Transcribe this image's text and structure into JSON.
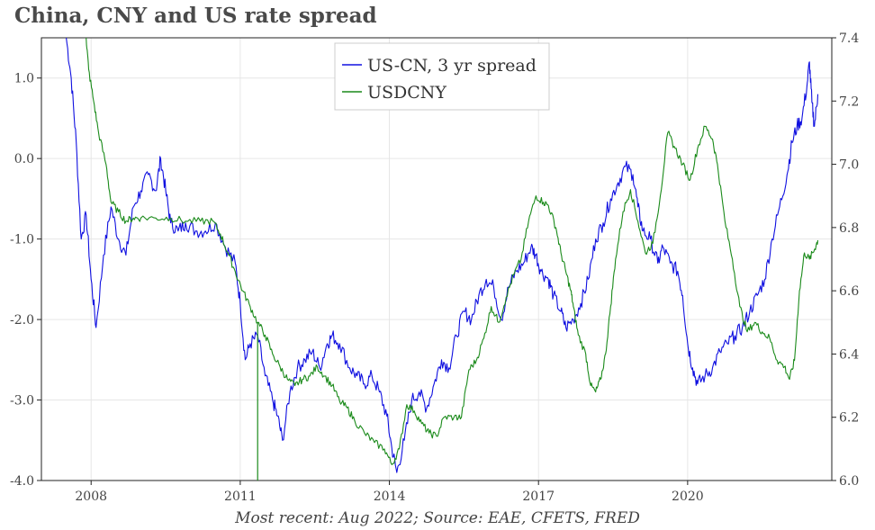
{
  "chart_data": {
    "type": "line",
    "title": "China, CNY and US rate spread",
    "source_note": "Most recent: Aug 2022; Source: EAE, CFETS, FRED",
    "x_ticks": [
      "2008",
      "2011",
      "2014",
      "2017",
      "2020"
    ],
    "y_left": {
      "ticks": [
        "1.0",
        "0.0",
        "-1.0",
        "-2.0",
        "-3.0",
        "-4.0"
      ],
      "range": [
        -4.0,
        1.5
      ]
    },
    "y_right": {
      "ticks": [
        "7.4",
        "7.2",
        "7.0",
        "6.8",
        "6.6",
        "6.4",
        "6.2",
        "6.0"
      ],
      "range": [
        6.0,
        7.4
      ]
    },
    "x_range": [
      2007.0,
      2022.9
    ],
    "grid": true,
    "legend_position": "top-center",
    "series": [
      {
        "name": "US-CN, 3 yr spread",
        "axis": "left",
        "color": "#1010e0",
        "points": [
          [
            2007.5,
            1.5
          ],
          [
            2007.6,
            1.0
          ],
          [
            2007.7,
            0.2
          ],
          [
            2007.8,
            -1.0
          ],
          [
            2007.9,
            -0.7
          ],
          [
            2008.0,
            -1.5
          ],
          [
            2008.1,
            -2.1
          ],
          [
            2008.25,
            -1.2
          ],
          [
            2008.4,
            -0.6
          ],
          [
            2008.55,
            -1.0
          ],
          [
            2008.7,
            -1.2
          ],
          [
            2008.85,
            -0.6
          ],
          [
            2009.0,
            -0.4
          ],
          [
            2009.15,
            -0.2
          ],
          [
            2009.3,
            -0.4
          ],
          [
            2009.4,
            0.0
          ],
          [
            2009.5,
            -0.4
          ],
          [
            2009.6,
            -0.8
          ],
          [
            2009.75,
            -0.9
          ],
          [
            2009.9,
            -0.8
          ],
          [
            2010.1,
            -0.9
          ],
          [
            2010.3,
            -0.9
          ],
          [
            2010.5,
            -0.8
          ],
          [
            2010.7,
            -1.1
          ],
          [
            2010.9,
            -1.3
          ],
          [
            2011.0,
            -1.8
          ],
          [
            2011.1,
            -2.5
          ],
          [
            2011.2,
            -2.3
          ],
          [
            2011.35,
            -2.2
          ],
          [
            2011.5,
            -2.7
          ],
          [
            2011.65,
            -3.0
          ],
          [
            2011.75,
            -3.2
          ],
          [
            2011.85,
            -3.5
          ],
          [
            2012.0,
            -2.9
          ],
          [
            2012.15,
            -2.6
          ],
          [
            2012.3,
            -2.5
          ],
          [
            2012.45,
            -2.4
          ],
          [
            2012.6,
            -2.6
          ],
          [
            2012.75,
            -2.3
          ],
          [
            2012.85,
            -2.2
          ],
          [
            2013.0,
            -2.3
          ],
          [
            2013.2,
            -2.6
          ],
          [
            2013.35,
            -2.7
          ],
          [
            2013.5,
            -2.8
          ],
          [
            2013.65,
            -2.7
          ],
          [
            2013.8,
            -2.9
          ],
          [
            2013.95,
            -3.2
          ],
          [
            2014.05,
            -3.6
          ],
          [
            2014.15,
            -3.9
          ],
          [
            2014.3,
            -3.5
          ],
          [
            2014.45,
            -3.0
          ],
          [
            2014.6,
            -2.9
          ],
          [
            2014.75,
            -3.1
          ],
          [
            2014.9,
            -2.8
          ],
          [
            2015.05,
            -2.5
          ],
          [
            2015.2,
            -2.6
          ],
          [
            2015.35,
            -2.2
          ],
          [
            2015.5,
            -1.9
          ],
          [
            2015.65,
            -2.0
          ],
          [
            2015.8,
            -1.7
          ],
          [
            2015.95,
            -1.5
          ],
          [
            2016.1,
            -1.6
          ],
          [
            2016.25,
            -2.0
          ],
          [
            2016.4,
            -1.6
          ],
          [
            2016.55,
            -1.4
          ],
          [
            2016.7,
            -1.3
          ],
          [
            2016.85,
            -1.1
          ],
          [
            2016.95,
            -1.2
          ],
          [
            2017.05,
            -1.4
          ],
          [
            2017.2,
            -1.5
          ],
          [
            2017.3,
            -1.7
          ],
          [
            2017.45,
            -1.9
          ],
          [
            2017.55,
            -2.1
          ],
          [
            2017.7,
            -2.0
          ],
          [
            2017.85,
            -1.8
          ],
          [
            2018.0,
            -1.5
          ],
          [
            2018.15,
            -1.0
          ],
          [
            2018.3,
            -0.8
          ],
          [
            2018.45,
            -0.5
          ],
          [
            2018.6,
            -0.3
          ],
          [
            2018.75,
            -0.1
          ],
          [
            2018.9,
            -0.2
          ],
          [
            2019.0,
            -0.6
          ],
          [
            2019.1,
            -0.9
          ],
          [
            2019.25,
            -1.0
          ],
          [
            2019.4,
            -1.3
          ],
          [
            2019.5,
            -1.1
          ],
          [
            2019.65,
            -1.3
          ],
          [
            2019.8,
            -1.4
          ],
          [
            2019.9,
            -1.7
          ],
          [
            2020.0,
            -2.3
          ],
          [
            2020.1,
            -2.6
          ],
          [
            2020.2,
            -2.8
          ],
          [
            2020.35,
            -2.7
          ],
          [
            2020.5,
            -2.6
          ],
          [
            2020.65,
            -2.4
          ],
          [
            2020.8,
            -2.3
          ],
          [
            2020.95,
            -2.2
          ],
          [
            2021.1,
            -2.1
          ],
          [
            2021.25,
            -1.9
          ],
          [
            2021.4,
            -1.7
          ],
          [
            2021.55,
            -1.5
          ],
          [
            2021.7,
            -1.0
          ],
          [
            2021.85,
            -0.6
          ],
          [
            2022.0,
            -0.2
          ],
          [
            2022.1,
            0.2
          ],
          [
            2022.2,
            0.4
          ],
          [
            2022.3,
            0.5
          ],
          [
            2022.4,
            0.9
          ],
          [
            2022.45,
            1.2
          ],
          [
            2022.5,
            0.7
          ],
          [
            2022.55,
            0.4
          ],
          [
            2022.62,
            0.8
          ]
        ]
      },
      {
        "name": "USDCNY",
        "axis": "right",
        "color": "#1a8a1a",
        "points": [
          [
            2007.9,
            7.4
          ],
          [
            2007.95,
            7.3
          ],
          [
            2008.05,
            7.2
          ],
          [
            2008.15,
            7.1
          ],
          [
            2008.3,
            7.0
          ],
          [
            2008.4,
            6.88
          ],
          [
            2008.55,
            6.85
          ],
          [
            2008.7,
            6.82
          ],
          [
            2008.85,
            6.83
          ],
          [
            2009.0,
            6.83
          ],
          [
            2009.3,
            6.83
          ],
          [
            2009.6,
            6.83
          ],
          [
            2009.9,
            6.82
          ],
          [
            2010.2,
            6.82
          ],
          [
            2010.45,
            6.82
          ],
          [
            2010.6,
            6.78
          ],
          [
            2010.75,
            6.72
          ],
          [
            2010.9,
            6.66
          ],
          [
            2011.05,
            6.6
          ],
          [
            2011.2,
            6.55
          ],
          [
            2011.35,
            6.5
          ],
          [
            2011.5,
            6.46
          ],
          [
            2011.65,
            6.4
          ],
          [
            2011.8,
            6.36
          ],
          [
            2011.95,
            6.32
          ],
          [
            2012.1,
            6.3
          ],
          [
            2012.25,
            6.32
          ],
          [
            2012.4,
            6.33
          ],
          [
            2012.55,
            6.36
          ],
          [
            2012.7,
            6.33
          ],
          [
            2012.85,
            6.3
          ],
          [
            2013.0,
            6.25
          ],
          [
            2013.15,
            6.23
          ],
          [
            2013.3,
            6.19
          ],
          [
            2013.5,
            6.15
          ],
          [
            2013.7,
            6.12
          ],
          [
            2013.9,
            6.1
          ],
          [
            2014.05,
            6.05
          ],
          [
            2014.2,
            6.1
          ],
          [
            2014.35,
            6.24
          ],
          [
            2014.5,
            6.22
          ],
          [
            2014.65,
            6.18
          ],
          [
            2014.8,
            6.15
          ],
          [
            2014.95,
            6.14
          ],
          [
            2015.1,
            6.2
          ],
          [
            2015.3,
            6.2
          ],
          [
            2015.45,
            6.2
          ],
          [
            2015.6,
            6.35
          ],
          [
            2015.75,
            6.38
          ],
          [
            2015.9,
            6.45
          ],
          [
            2016.05,
            6.55
          ],
          [
            2016.2,
            6.5
          ],
          [
            2016.35,
            6.58
          ],
          [
            2016.5,
            6.65
          ],
          [
            2016.65,
            6.7
          ],
          [
            2016.8,
            6.82
          ],
          [
            2016.95,
            6.9
          ],
          [
            2017.1,
            6.88
          ],
          [
            2017.2,
            6.87
          ],
          [
            2017.35,
            6.8
          ],
          [
            2017.45,
            6.72
          ],
          [
            2017.55,
            6.66
          ],
          [
            2017.65,
            6.6
          ],
          [
            2017.7,
            6.55
          ],
          [
            2017.8,
            6.46
          ],
          [
            2017.95,
            6.4
          ],
          [
            2018.05,
            6.3
          ],
          [
            2018.15,
            6.28
          ],
          [
            2018.25,
            6.32
          ],
          [
            2018.35,
            6.4
          ],
          [
            2018.45,
            6.55
          ],
          [
            2018.55,
            6.7
          ],
          [
            2018.7,
            6.85
          ],
          [
            2018.85,
            6.92
          ],
          [
            2019.0,
            6.82
          ],
          [
            2019.15,
            6.72
          ],
          [
            2019.3,
            6.75
          ],
          [
            2019.45,
            6.9
          ],
          [
            2019.6,
            7.1
          ],
          [
            2019.75,
            7.05
          ],
          [
            2019.9,
            7.0
          ],
          [
            2020.05,
            6.95
          ],
          [
            2020.2,
            7.05
          ],
          [
            2020.35,
            7.12
          ],
          [
            2020.5,
            7.08
          ],
          [
            2020.6,
            7.0
          ],
          [
            2020.75,
            6.82
          ],
          [
            2020.9,
            6.7
          ],
          [
            2021.05,
            6.55
          ],
          [
            2021.2,
            6.47
          ],
          [
            2021.35,
            6.5
          ],
          [
            2021.5,
            6.47
          ],
          [
            2021.65,
            6.45
          ],
          [
            2021.8,
            6.38
          ],
          [
            2021.95,
            6.36
          ],
          [
            2022.05,
            6.32
          ],
          [
            2022.15,
            6.38
          ],
          [
            2022.25,
            6.6
          ],
          [
            2022.35,
            6.72
          ],
          [
            2022.45,
            6.7
          ],
          [
            2022.55,
            6.73
          ],
          [
            2022.62,
            6.76
          ]
        ]
      }
    ]
  }
}
